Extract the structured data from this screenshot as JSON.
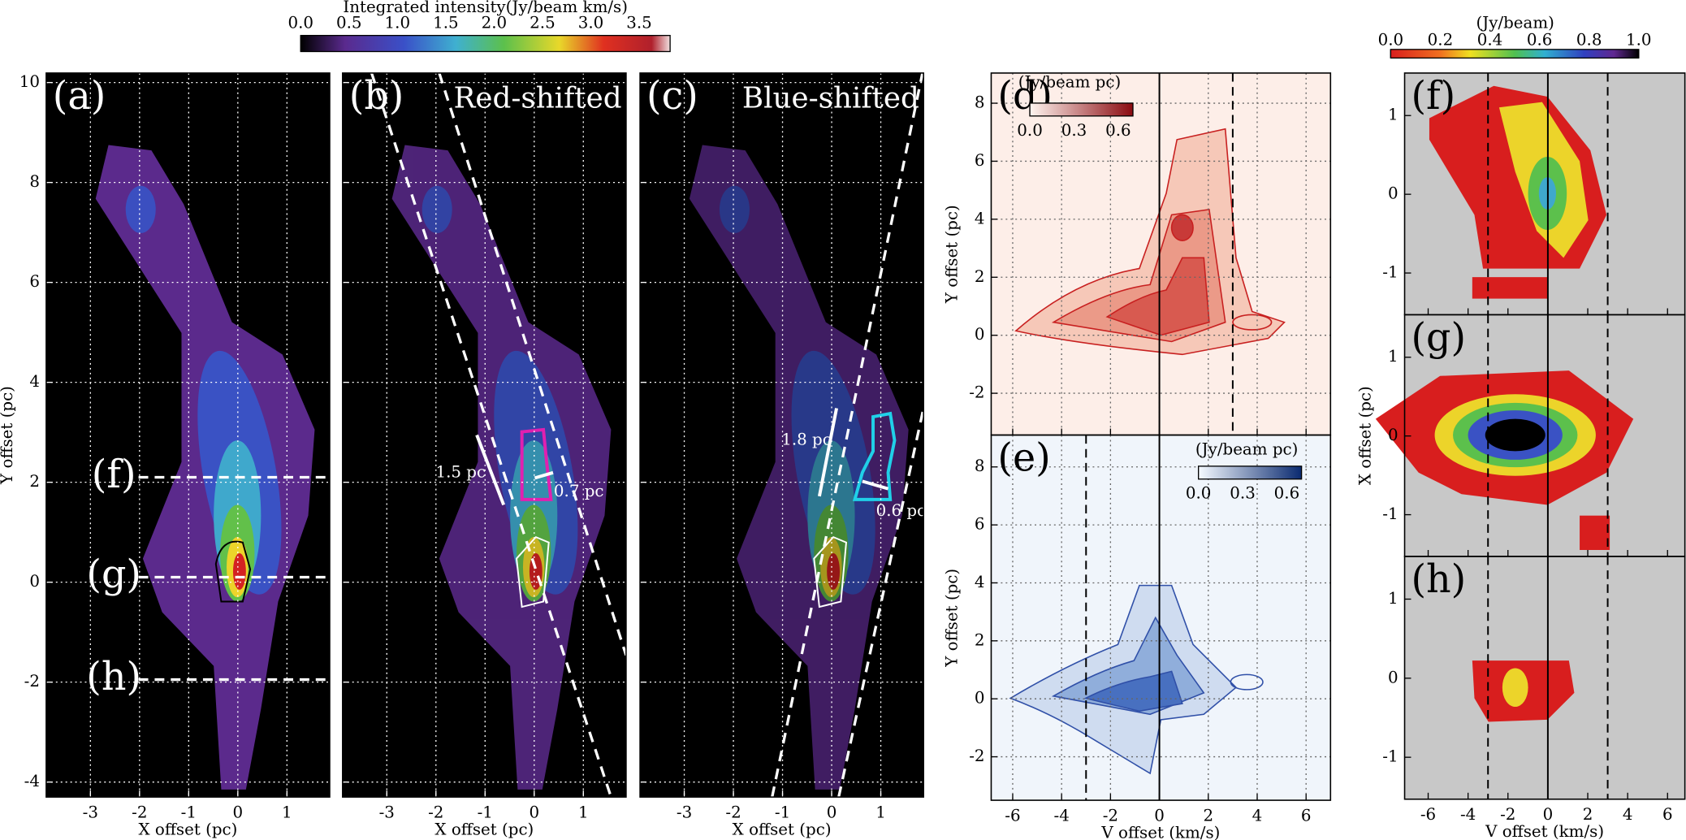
{
  "colorbars": [
    {
      "label": "Integrated intensity(Jy/beam km/s)",
      "lim": [
        0,
        3.82
      ],
      "ticks": [
        {
          "value": 0,
          "label": "0.0"
        },
        {
          "value": 0.5,
          "label": "0.5"
        },
        {
          "value": 1,
          "label": "1.0"
        },
        {
          "value": 1.5,
          "label": "1.5"
        },
        {
          "value": 2,
          "label": "2.0"
        },
        {
          "value": 2.5,
          "label": "2.5"
        },
        {
          "value": 3,
          "label": "3.0"
        },
        {
          "value": 3.5,
          "label": "3.5"
        }
      ]
    },
    {
      "label": "(Jy/beam)",
      "lim": [
        0,
        1
      ],
      "ticks": [
        {
          "value": 0,
          "label": "0.0"
        },
        {
          "value": 0.2,
          "label": "0.2"
        },
        {
          "value": 0.4,
          "label": "0.4"
        },
        {
          "value": 0.6,
          "label": "0.6"
        },
        {
          "value": 0.8,
          "label": "0.8"
        },
        {
          "value": 1,
          "label": "1.0"
        }
      ]
    },
    {
      "label": "(Jy/beam pc)",
      "lim": [
        0,
        0.7
      ],
      "ticks": [
        {
          "value": 0,
          "label": "0.0"
        },
        {
          "value": 0.3,
          "label": "0.3"
        },
        {
          "value": 0.6,
          "label": "0.6"
        }
      ]
    },
    {
      "label": "(Jy/beam pc)",
      "lim": [
        0,
        0.7
      ],
      "ticks": [
        {
          "value": 0,
          "label": "0.0"
        },
        {
          "value": 0.3,
          "label": "0.3"
        },
        {
          "value": 0.6,
          "label": "0.6"
        }
      ]
    }
  ],
  "panels": [
    {
      "label": "(a)",
      "xlim": [
        -3.9,
        1.87
      ],
      "ylim": [
        -4.3,
        10.19
      ],
      "xticks": [
        -3,
        -2,
        -1,
        0,
        1
      ],
      "yticks": [
        -4,
        -2,
        0,
        2,
        4,
        6,
        8,
        10
      ],
      "xlabel": "X offset (pc)",
      "ylabel": "Y offset (pc)",
      "background": "#000000",
      "grid": true,
      "cuts": [
        {
          "label": "(f)",
          "y": 2.1
        },
        {
          "label": "(g)",
          "y": 0.1
        },
        {
          "label": "(h)",
          "y": -1.95
        }
      ]
    },
    {
      "label": "(b)",
      "title": "Red-shifted",
      "xlim": [
        -3.9,
        1.87
      ],
      "ylim": [
        -4.3,
        10.19
      ],
      "xticks": [
        -3,
        -2,
        -1,
        0,
        1
      ],
      "yticks": [
        -4,
        -2,
        0,
        2,
        4,
        6,
        8,
        10
      ],
      "yticklabels": false,
      "xlabel": "X offset (pc)",
      "background": "#000000",
      "grid": true,
      "annotations": [
        "1.5 pc",
        "0.7 pc"
      ]
    },
    {
      "label": "(c)",
      "title": "Blue-shifted",
      "xlim": [
        -3.9,
        1.87
      ],
      "ylim": [
        -4.3,
        10.19
      ],
      "xticks": [
        -3,
        -2,
        -1,
        0,
        1
      ],
      "yticks": [
        -4,
        -2,
        0,
        2,
        4,
        6,
        8,
        10
      ],
      "yticklabels": false,
      "xlabel": "X offset (pc)",
      "background": "#000000",
      "grid": true,
      "annotations": [
        "1.8 pc",
        "0.6 pc"
      ]
    },
    {
      "label": "(d)",
      "xlim": [
        -6.88,
        7.0
      ],
      "ylim": [
        -3.44,
        9.04
      ],
      "xticks": [
        -6,
        -4,
        -2,
        0,
        2,
        4,
        6
      ],
      "xticklabels": false,
      "yticks": [
        -2,
        0,
        2,
        4,
        6,
        8
      ],
      "ylabel": "Y offset (pc)",
      "background": "#fdeee8",
      "grid": true,
      "vlines": [
        {
          "x": 0,
          "style": "solid"
        },
        {
          "x": 3,
          "style": "dashed"
        }
      ]
    },
    {
      "label": "(e)",
      "xlim": [
        -6.88,
        7.0
      ],
      "ylim": [
        -3.5,
        9.1
      ],
      "xticks": [
        -6,
        -4,
        -2,
        0,
        2,
        4,
        6
      ],
      "yticks": [
        -2,
        0,
        2,
        4,
        6,
        8
      ],
      "xlabel": "V offset (km/s)",
      "ylabel": "Y offset (pc)",
      "background": "#f0f5fb",
      "grid": true,
      "vlines": [
        {
          "x": 0,
          "style": "solid"
        },
        {
          "x": -3,
          "style": "dashed"
        }
      ]
    },
    {
      "label": "(f)",
      "xlim": [
        -7.18,
        6.87
      ],
      "ylim": [
        -1.53,
        1.54
      ],
      "xticks": [
        -6,
        -4,
        -2,
        0,
        2,
        4,
        6
      ],
      "xticklabels": false,
      "yticks": [
        -1,
        0,
        1
      ],
      "background": "#c8c8c8",
      "grid": false,
      "vlines": [
        {
          "x": 0,
          "style": "solid"
        },
        {
          "x": -3,
          "style": "dashed"
        },
        {
          "x": 3,
          "style": "dashed"
        }
      ]
    },
    {
      "label": "(g)",
      "xlim": [
        -7.18,
        6.87
      ],
      "ylim": [
        -1.53,
        1.54
      ],
      "xticks": [
        -6,
        -4,
        -2,
        0,
        2,
        4,
        6
      ],
      "xticklabels": false,
      "yticks": [
        -1,
        0,
        1
      ],
      "ylabel": "X offset (pc)",
      "background": "#c8c8c8",
      "grid": false,
      "vlines": [
        {
          "x": 0,
          "style": "solid"
        },
        {
          "x": -3,
          "style": "dashed"
        },
        {
          "x": 3,
          "style": "dashed"
        }
      ]
    },
    {
      "label": "(h)",
      "xlim": [
        -7.18,
        6.87
      ],
      "ylim": [
        -1.53,
        1.54
      ],
      "xticks": [
        -6,
        -4,
        -2,
        0,
        2,
        4,
        6
      ],
      "yticks": [
        -1,
        0,
        1
      ],
      "xlabel": "V offset (km/s)",
      "background": "#c8c8c8",
      "grid": false,
      "vlines": [
        {
          "x": 0,
          "style": "solid"
        },
        {
          "x": -3,
          "style": "dashed"
        },
        {
          "x": 3,
          "style": "dashed"
        }
      ]
    }
  ]
}
